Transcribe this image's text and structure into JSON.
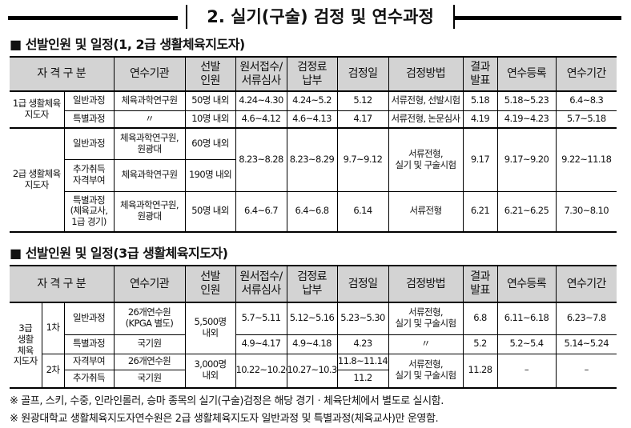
{
  "title": "2. 실기(구술) 검정 및 연수과정",
  "section1": "■ 선발인원 및 일정(1, 2급 생활체육지도자)",
  "section2": "■ 선발인원 및 일정(3급 생활체육지도자)",
  "headers": [
    "자 격 구 분",
    "연수기관",
    "선발\n인원",
    "원서접수/\n서류심사",
    "검정료\n납부",
    "검정일",
    "검정방법",
    "결과\n발표",
    "연수등록",
    "연수기간"
  ],
  "t1": {
    "g1": "1급 생활체육\n지도자",
    "g2": "2급 생활체육\n지도자",
    "r1": [
      "일반과정",
      "체육과학연구원",
      "50명 내외",
      "4.24~4.30",
      "4.24~5.2",
      "5.12",
      "서류전형, 선발시험",
      "5.18",
      "5.18~5.23",
      "6.4~8.3"
    ],
    "r2": [
      "특별과정",
      "〃",
      "10명 내외",
      "4.6~4.12",
      "4.6~4.13",
      "4.17",
      "서류전형, 논문심사",
      "4.19",
      "4.19~4.23",
      "5.7~5.18"
    ],
    "r3": [
      "일반과정",
      "체육과학연구원,\n원광대",
      "60명 내외",
      "8.23~8.28",
      "8.23~8.29",
      "9.7~9.12",
      "서류전형,\n실기 및 구술시험",
      "9.17",
      "9.17~9.20",
      "9.22~11.18"
    ],
    "r4": [
      "추가취득\n자격부여",
      "체육과학연구원",
      "190명 내외"
    ],
    "r5": [
      "특별과정\n(체육교사,\n1급 경기)",
      "체육과학연구원,\n원광대",
      "50명 내외",
      "6.4~6.7",
      "6.4~6.8",
      "6.14",
      "서류전형",
      "6.21",
      "6.21~6.25",
      "7.30~8.10"
    ]
  },
  "t2": {
    "g": "3급\n생활\n체육\n지도자",
    "s1": "1차",
    "s2": "2차",
    "r1": [
      "일반과정",
      "26개연수원\n(KPGA 별도)",
      "5,500명\n내외",
      "5.7~5.11",
      "5.12~5.16",
      "5.23~5.30",
      "서류전형,\n실기 및 구술시험",
      "6.8",
      "6.11~6.18",
      "6.23~7.8"
    ],
    "r2": [
      "특별과정",
      "국기원",
      "4.9~4.17",
      "4.9~4.18",
      "4.23",
      "〃",
      "5.2",
      "5.2~5.4",
      "5.14~5.24"
    ],
    "r3": [
      "자격부여",
      "26개연수원",
      "3,000명\n내외",
      "10.22~10.26",
      "10.27~10.31",
      "11.8~11.14",
      "서류전형,\n실기 및 구술시험",
      "11.28",
      "–",
      "–"
    ],
    "r4": [
      "추가취득",
      "국기원",
      "11.2"
    ]
  },
  "notes": [
    "※ 골프, 스키, 수중, 인라인롤러, 승마 종목의 실기(구술)검정은 해당 경기ㆍ체육단체에서 별도로 실시함.",
    "※ 원광대학교 생활체육지도자연수원은 2급 생활체육지도자 일반과정 및 특별과정(체육교사)만 운영함."
  ]
}
